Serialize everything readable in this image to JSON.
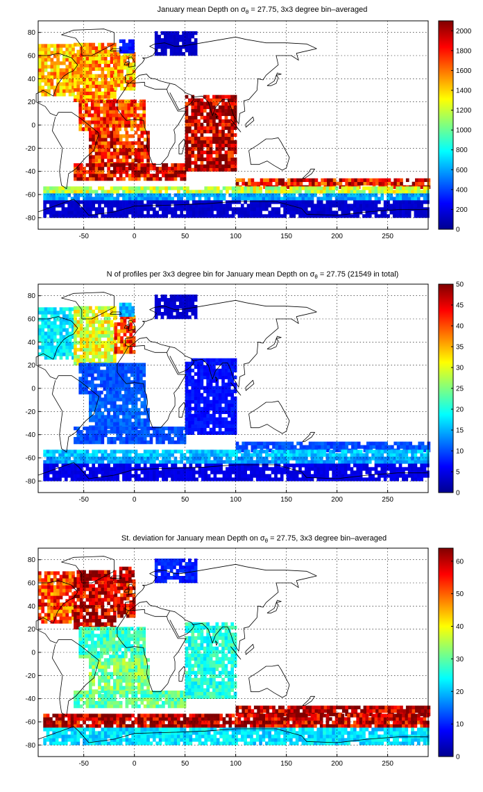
{
  "chart_data": [
    {
      "type": "heatmap",
      "title_parts": {
        "before": "January mean Depth on σ",
        "sub": "θ",
        "after": " = 27.75, 3x3 degree bin–averaged"
      },
      "xlim": [
        -95,
        290
      ],
      "ylim": [
        -90,
        90
      ],
      "xticks": [
        -50,
        0,
        50,
        100,
        150,
        200,
        250
      ],
      "yticks": [
        -80,
        -60,
        -40,
        -20,
        0,
        20,
        40,
        60,
        80
      ],
      "colorbar": {
        "min": 0,
        "max": 2100,
        "ticks": [
          0,
          200,
          400,
          600,
          800,
          1000,
          1200,
          1400,
          1600,
          1800,
          2000
        ]
      },
      "grid": true,
      "colormap": "jet",
      "regions": [
        {
          "lon": [
            -95,
            -60
          ],
          "lat": [
            25,
            70
          ],
          "value": 1450
        },
        {
          "lon": [
            -60,
            -20
          ],
          "lat": [
            20,
            70
          ],
          "value": 1520
        },
        {
          "lon": [
            -20,
            0
          ],
          "lat": [
            30,
            62
          ],
          "value": 1470
        },
        {
          "lon": [
            -55,
            10
          ],
          "lat": [
            -5,
            20
          ],
          "value": 1720
        },
        {
          "lon": [
            -45,
            15
          ],
          "lat": [
            -35,
            -5
          ],
          "value": 1780
        },
        {
          "lon": [
            -60,
            50
          ],
          "lat": [
            -48,
            -35
          ],
          "value": 1900
        },
        {
          "lon": [
            50,
            100
          ],
          "lat": [
            -40,
            25
          ],
          "value": 1980
        },
        {
          "lon": [
            100,
            290
          ],
          "lat": [
            -55,
            -48
          ],
          "value": 1850
        },
        {
          "lon": [
            -90,
            290
          ],
          "lat": [
            -59,
            -55
          ],
          "value": 1200
        },
        {
          "lon": [
            -90,
            290
          ],
          "lat": [
            -65,
            -59
          ],
          "value": 600
        },
        {
          "lon": [
            -90,
            290
          ],
          "lat": [
            -80,
            -65
          ],
          "value": 160
        },
        {
          "lon": [
            -15,
            0
          ],
          "lat": [
            62,
            72
          ],
          "value": 300
        },
        {
          "lon": [
            20,
            60
          ],
          "lat": [
            60,
            80
          ],
          "value": 150
        }
      ]
    },
    {
      "type": "heatmap",
      "title_parts": {
        "before": "N of profiles per 3x3 degree bin for January mean Depth on σ",
        "sub": "θ",
        "after": " = 27.75 (21549 in total)"
      },
      "xlim": [
        -95,
        290
      ],
      "ylim": [
        -90,
        90
      ],
      "xticks": [
        -50,
        0,
        50,
        100,
        150,
        200,
        250
      ],
      "yticks": [
        -80,
        -60,
        -40,
        -20,
        0,
        20,
        40,
        60,
        80
      ],
      "colorbar": {
        "min": 0,
        "max": 50,
        "ticks": [
          0,
          5,
          10,
          15,
          20,
          25,
          30,
          35,
          40,
          45,
          50
        ]
      },
      "grid": true,
      "colormap": "jet",
      "regions": [
        {
          "lon": [
            -95,
            -60
          ],
          "lat": [
            25,
            70
          ],
          "value": 18
        },
        {
          "lon": [
            -60,
            -20
          ],
          "lat": [
            20,
            70
          ],
          "value": 30
        },
        {
          "lon": [
            -20,
            0
          ],
          "lat": [
            30,
            62
          ],
          "value": 40
        },
        {
          "lon": [
            -55,
            10
          ],
          "lat": [
            -5,
            20
          ],
          "value": 10
        },
        {
          "lon": [
            -45,
            15
          ],
          "lat": [
            -35,
            -5
          ],
          "value": 11
        },
        {
          "lon": [
            -60,
            50
          ],
          "lat": [
            -48,
            -35
          ],
          "value": 10
        },
        {
          "lon": [
            50,
            100
          ],
          "lat": [
            -40,
            25
          ],
          "value": 7
        },
        {
          "lon": [
            100,
            290
          ],
          "lat": [
            -55,
            -48
          ],
          "value": 10
        },
        {
          "lon": [
            -90,
            290
          ],
          "lat": [
            -59,
            -55
          ],
          "value": 16
        },
        {
          "lon": [
            -90,
            290
          ],
          "lat": [
            -65,
            -59
          ],
          "value": 14
        },
        {
          "lon": [
            -90,
            290
          ],
          "lat": [
            -80,
            -65
          ],
          "value": 5
        },
        {
          "lon": [
            -15,
            0
          ],
          "lat": [
            62,
            72
          ],
          "value": 15
        },
        {
          "lon": [
            20,
            60
          ],
          "lat": [
            60,
            80
          ],
          "value": 4
        }
      ]
    },
    {
      "type": "heatmap",
      "title_parts": {
        "before": "St. deviation for January mean Depth on σ",
        "sub": "θ",
        "after": " = 27.75, 3x3 degree bin–averaged"
      },
      "xlim": [
        -95,
        290
      ],
      "ylim": [
        -90,
        90
      ],
      "xticks": [
        -50,
        0,
        50,
        100,
        150,
        200,
        250
      ],
      "yticks": [
        -80,
        -60,
        -40,
        -20,
        0,
        20,
        40,
        60,
        80
      ],
      "colorbar": {
        "min": 0,
        "max": 64,
        "ticks": [
          0,
          10,
          20,
          30,
          40,
          50,
          60
        ]
      },
      "grid": true,
      "colormap": "jet",
      "regions": [
        {
          "lon": [
            -95,
            -60
          ],
          "lat": [
            25,
            70
          ],
          "value": 52
        },
        {
          "lon": [
            -60,
            -20
          ],
          "lat": [
            20,
            70
          ],
          "value": 60
        },
        {
          "lon": [
            -20,
            0
          ],
          "lat": [
            30,
            62
          ],
          "value": 58
        },
        {
          "lon": [
            -55,
            10
          ],
          "lat": [
            -5,
            20
          ],
          "value": 28
        },
        {
          "lon": [
            -45,
            15
          ],
          "lat": [
            -35,
            -5
          ],
          "value": 32
        },
        {
          "lon": [
            -60,
            50
          ],
          "lat": [
            -48,
            -35
          ],
          "value": 30
        },
        {
          "lon": [
            50,
            100
          ],
          "lat": [
            -40,
            25
          ],
          "value": 26
        },
        {
          "lon": [
            100,
            290
          ],
          "lat": [
            -55,
            -48
          ],
          "value": 62
        },
        {
          "lon": [
            -90,
            290
          ],
          "lat": [
            -59,
            -55
          ],
          "value": 62
        },
        {
          "lon": [
            -90,
            290
          ],
          "lat": [
            -65,
            -59
          ],
          "value": 60
        },
        {
          "lon": [
            -90,
            290
          ],
          "lat": [
            -80,
            -65
          ],
          "value": 22
        },
        {
          "lon": [
            -15,
            0
          ],
          "lat": [
            62,
            72
          ],
          "value": 62
        },
        {
          "lon": [
            20,
            60
          ],
          "lat": [
            60,
            80
          ],
          "value": 10
        }
      ]
    }
  ]
}
